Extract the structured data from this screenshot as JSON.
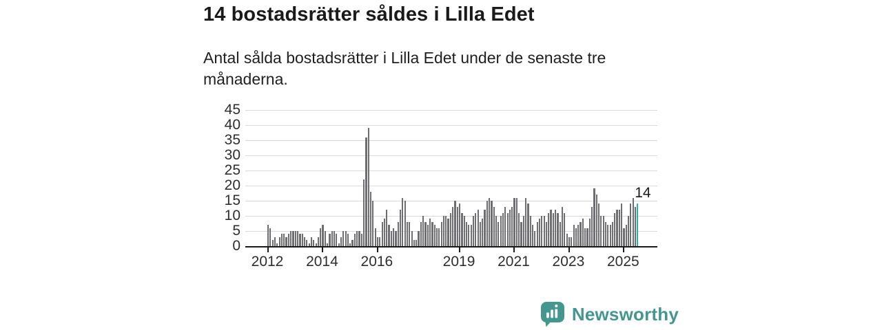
{
  "header": {
    "title": "14 bostadsrätter såldes i Lilla Edet",
    "subtitle": "Antal sålda bostadsrätter i Lilla Edet under de senaste tre månaderna."
  },
  "chart_data": {
    "type": "bar",
    "title": "14 bostadsrätter såldes i Lilla Edet",
    "subtitle": "Antal sålda bostadsrätter i Lilla Edet under de senaste tre månaderna.",
    "frequency": "monthly",
    "x_start": "2012-01",
    "x_end": "2025-07",
    "xlabel": "",
    "ylabel": "",
    "ylim": [
      0,
      45
    ],
    "yticks": [
      0,
      5,
      10,
      15,
      20,
      25,
      30,
      35,
      40,
      45
    ],
    "grid": true,
    "legend": "none",
    "xticks": [
      {
        "label": "2012",
        "month_index": 0
      },
      {
        "label": "2014",
        "month_index": 24
      },
      {
        "label": "2016",
        "month_index": 48
      },
      {
        "label": "2019",
        "month_index": 84
      },
      {
        "label": "2021",
        "month_index": 108
      },
      {
        "label": "2023",
        "month_index": 132
      },
      {
        "label": "2025",
        "month_index": 156
      }
    ],
    "values": [
      7,
      6,
      2,
      3,
      1,
      3,
      4,
      4,
      3,
      4,
      5,
      5,
      5,
      5,
      4,
      4,
      3,
      2,
      1,
      3,
      2,
      1,
      3,
      6,
      7,
      5,
      1,
      4,
      5,
      5,
      4,
      1,
      3,
      5,
      5,
      4,
      1,
      2,
      4,
      5,
      5,
      4,
      22,
      36,
      39,
      18,
      15,
      6,
      3,
      3,
      8,
      9,
      12,
      7,
      5,
      6,
      5,
      8,
      12,
      16,
      15,
      8,
      8,
      5,
      2,
      2,
      5,
      8,
      10,
      8,
      7,
      9,
      8,
      7,
      6,
      6,
      8,
      10,
      10,
      9,
      11,
      13,
      15,
      13,
      14,
      11,
      10,
      8,
      7,
      7,
      10,
      11,
      12,
      8,
      9,
      12,
      15,
      16,
      15,
      13,
      10,
      8,
      10,
      11,
      13,
      11,
      12,
      13,
      16,
      16,
      11,
      8,
      10,
      16,
      14,
      10,
      7,
      5,
      8,
      9,
      10,
      10,
      8,
      11,
      12,
      11,
      12,
      11,
      8,
      13,
      11,
      4,
      3,
      3,
      7,
      6,
      7,
      8,
      9,
      6,
      6,
      9,
      13,
      19,
      17,
      14,
      10,
      10,
      8,
      7,
      7,
      8,
      11,
      12,
      12,
      14,
      6,
      7,
      10,
      14,
      16,
      13,
      14
    ],
    "bar_color": "#6e6e72",
    "highlight": {
      "index_from_end": 0,
      "value": 14,
      "label": "14",
      "color": "#29b2a8"
    },
    "annotation": "14"
  },
  "footer": {
    "brand": "Newsworthy",
    "logo_icon": "newsworthy-speech-bubble-chart-icon",
    "brand_color": "#44968f"
  },
  "colors": {
    "background": "#ffffff",
    "text": "#1a1a1a",
    "axis": "#1a1a1a",
    "axis_labels": "#2e2e2e",
    "gridline": "#d9d9d9",
    "bar": "#6e6e72",
    "highlight_bar": "#29b2a8",
    "brand": "#44968f"
  }
}
